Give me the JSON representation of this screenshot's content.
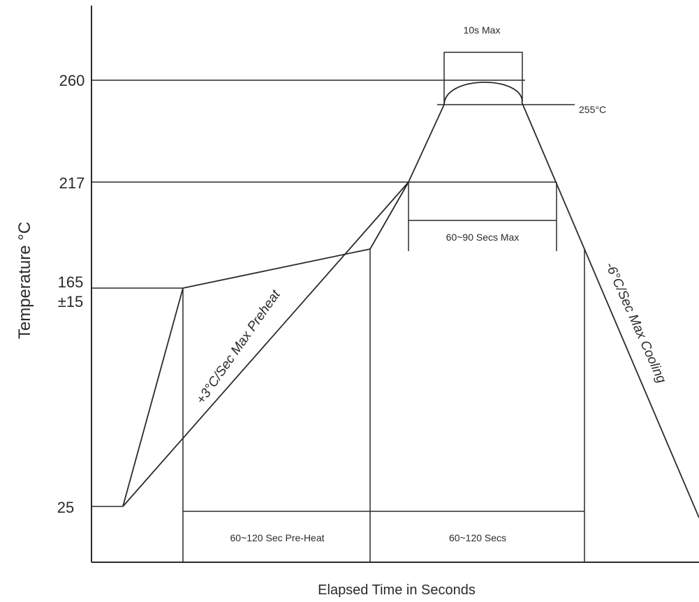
{
  "diagram": {
    "y_axis_label": "Temperature °C",
    "x_axis_label": "Elapsed Time in Seconds",
    "ticks": {
      "t260": "260",
      "t217": "217",
      "t165": "165",
      "t165_tol": "±15",
      "t25": "25"
    },
    "notes": {
      "peak_window": "10s Max",
      "peak_temp": "255°C",
      "above_liquidus": "60~90 Secs Max",
      "preheat_window": "60~120 Sec Pre-Heat",
      "reflow_window": "60~120 Secs"
    },
    "slopes": {
      "preheat": "+3°C/Sec Max Preheat",
      "cooling": "-6°C/Sec Max Cooling"
    },
    "line_color": "#2a2a2a"
  }
}
